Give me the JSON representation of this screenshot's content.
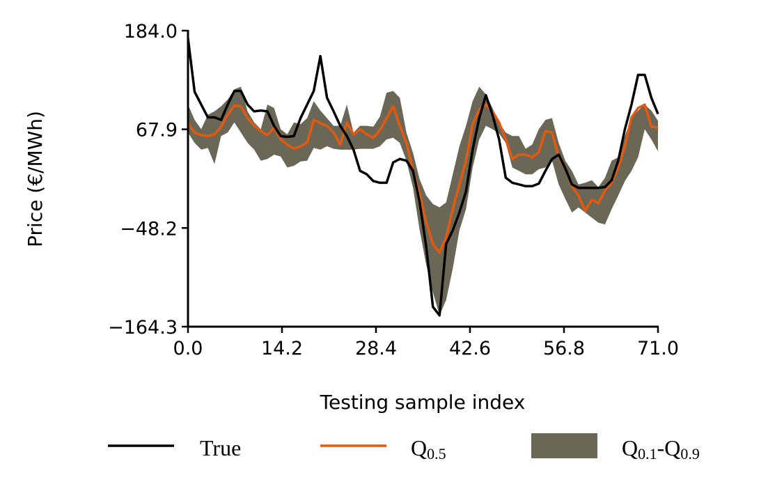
{
  "chart_data": {
    "type": "line",
    "xlabel": "Testing sample index",
    "ylabel": "Price (€/MWh)",
    "xlim": [
      0,
      71
    ],
    "ylim": [
      -164.3,
      184.0
    ],
    "xticks": [
      "0.0",
      "14.2",
      "28.4",
      "42.6",
      "56.8",
      "71.0"
    ],
    "xtick_values": [
      0,
      14.2,
      28.4,
      42.6,
      56.8,
      71.0
    ],
    "yticks": [
      "184.0",
      "67.9",
      "−48.2",
      "−164.3"
    ],
    "ytick_values": [
      184.0,
      67.9,
      -48.2,
      -164.3
    ],
    "grid": false,
    "legend_placement": "bottom",
    "colors": {
      "true": "#000000",
      "median": "#e35a0f",
      "band": "#6b6757"
    },
    "legend": [
      {
        "label": "True",
        "kind": "line"
      },
      {
        "label": "Q",
        "sub": "0.5",
        "kind": "line"
      },
      {
        "label": "Q",
        "sub": "0.1",
        "mid": "-Q",
        "sub2": "0.9",
        "kind": "patch"
      }
    ],
    "series": [
      {
        "name": "True",
        "values": [
          175,
          112,
          97,
          82,
          82,
          79,
          97,
          113,
          113,
          97,
          89,
          90,
          89,
          72,
          60,
          59,
          60,
          81,
          97,
          113,
          154,
          105,
          89,
          72,
          60,
          44,
          19,
          15,
          7,
          5,
          5,
          29,
          33,
          31,
          19,
          -18,
          -71,
          -141,
          -151,
          -67,
          -51,
          -30,
          -5,
          44,
          81,
          108,
          85,
          56,
          11,
          5,
          3,
          1,
          1,
          4,
          19,
          33,
          38,
          22,
          3,
          -1,
          -1,
          -1,
          -1,
          0,
          8,
          31,
          68,
          97,
          132,
          132,
          105,
          86
        ]
      },
      {
        "name": "Q0.5",
        "values": [
          75,
          64,
          61,
          60,
          62,
          71,
          85,
          96,
          95,
          81,
          72,
          66,
          61,
          70,
          56,
          50,
          45,
          48,
          52,
          79,
          75,
          72,
          64,
          50,
          76,
          62,
          68,
          62,
          58,
          67,
          81,
          95,
          72,
          52,
          19,
          -8,
          -42,
          -67,
          -77,
          -59,
          -26,
          3,
          31,
          74,
          91,
          97,
          89,
          76,
          56,
          33,
          38,
          38,
          35,
          41,
          66,
          64,
          35,
          23,
          1,
          -10,
          -28,
          -15,
          -19,
          -4,
          5,
          23,
          48,
          82,
          93,
          97,
          71,
          70
        ]
      },
      {
        "name": "Q0.1-Q0.9",
        "upper": [
          97,
          79,
          68,
          85,
          89,
          95,
          103,
          115,
          118,
          89,
          76,
          68,
          97,
          93,
          68,
          62,
          76,
          74,
          81,
          101,
          90,
          81,
          72,
          72,
          97,
          64,
          72,
          72,
          71,
          83,
          111,
          113,
          105,
          64,
          40,
          9,
          -10,
          -20,
          -24,
          -18,
          15,
          48,
          72,
          101,
          118,
          109,
          93,
          76,
          64,
          60,
          60,
          45,
          50,
          68,
          79,
          81,
          52,
          31,
          19,
          3,
          5,
          8,
          0,
          11,
          31,
          35,
          60,
          81,
          90,
          97,
          90,
          78
        ],
        "lower": [
          64,
          52,
          44,
          46,
          27,
          60,
          64,
          76,
          64,
          52,
          44,
          31,
          33,
          38,
          36,
          23,
          25,
          30,
          31,
          46,
          44,
          48,
          45,
          44,
          44,
          44,
          45,
          45,
          45,
          48,
          56,
          58,
          52,
          31,
          -1,
          -51,
          -92,
          -124,
          -151,
          -133,
          -96,
          -51,
          -26,
          23,
          56,
          72,
          68,
          63,
          52,
          23,
          19,
          15,
          15,
          21,
          23,
          31,
          3,
          -14,
          -30,
          -24,
          -30,
          -36,
          -42,
          -44,
          -26,
          -10,
          7,
          19,
          35,
          68,
          56,
          42
        ]
      }
    ]
  }
}
